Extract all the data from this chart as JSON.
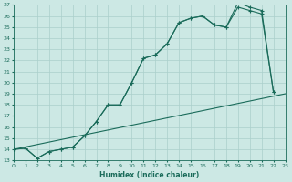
{
  "xlabel": "Humidex (Indice chaleur)",
  "xlim": [
    0,
    23
  ],
  "ylim": [
    13,
    27
  ],
  "xticks": [
    0,
    1,
    2,
    3,
    4,
    5,
    6,
    7,
    8,
    9,
    10,
    11,
    12,
    13,
    14,
    15,
    16,
    17,
    18,
    19,
    20,
    21,
    22,
    23
  ],
  "yticks": [
    13,
    14,
    15,
    16,
    17,
    18,
    19,
    20,
    21,
    22,
    23,
    24,
    25,
    26,
    27
  ],
  "bg_color": "#cce8e4",
  "grid_color": "#aacfcb",
  "line_color": "#1a6b5a",
  "line1_straight": {
    "x": [
      0,
      23
    ],
    "y": [
      14.0,
      19.0
    ]
  },
  "line2": {
    "x": [
      0,
      1,
      2,
      3,
      4,
      5,
      6,
      7,
      8,
      9,
      10,
      11,
      12,
      13,
      14,
      15,
      16,
      17,
      18,
      19,
      20,
      21,
      22
    ],
    "y": [
      14.0,
      14.1,
      13.2,
      13.8,
      14.0,
      14.2,
      15.2,
      16.5,
      18.0,
      18.0,
      20.0,
      22.2,
      22.5,
      23.5,
      25.4,
      25.8,
      26.0,
      25.2,
      25.0,
      26.8,
      26.5,
      26.2,
      19.2
    ]
  },
  "line3": {
    "x": [
      0,
      1,
      2,
      3,
      4,
      5,
      6,
      7,
      8,
      9,
      10,
      11,
      12,
      13,
      14,
      15,
      16,
      17,
      18,
      19,
      20,
      21,
      22
    ],
    "y": [
      14.0,
      14.1,
      13.2,
      13.8,
      14.0,
      14.2,
      15.2,
      16.5,
      18.0,
      18.0,
      20.0,
      22.2,
      22.5,
      23.5,
      25.4,
      25.8,
      26.0,
      25.2,
      25.0,
      27.2,
      26.8,
      26.5,
      19.2
    ]
  }
}
